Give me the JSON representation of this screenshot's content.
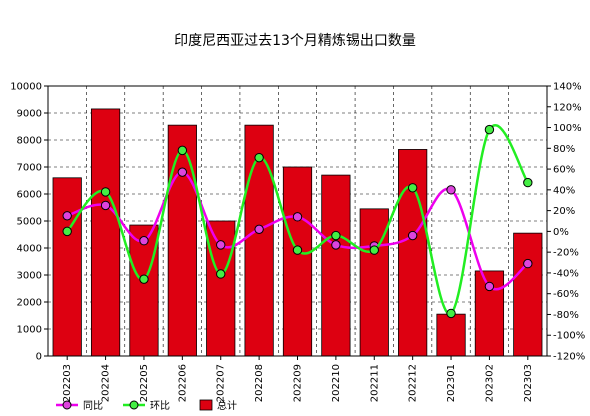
{
  "chart_data": {
    "type": "bar",
    "title": "印度尼西亚过去13个月精炼锡出口数量",
    "categories": [
      "202203",
      "202204",
      "202205",
      "202206",
      "202207",
      "202208",
      "202209",
      "202210",
      "202211",
      "202212",
      "202301",
      "202302",
      "202303"
    ],
    "y_left": {
      "min": 0,
      "max": 10000,
      "step": 1000,
      "ticks": [
        "0",
        "1000",
        "2000",
        "3000",
        "4000",
        "5000",
        "6000",
        "7000",
        "8000",
        "9000",
        "10000"
      ]
    },
    "y_right": {
      "min": -120,
      "max": 140,
      "step": 20,
      "ticks": [
        "-120%",
        "-100%",
        "-80%",
        "-60%",
        "-40%",
        "-20%",
        "0%",
        "20%",
        "40%",
        "60%",
        "80%",
        "100%",
        "120%",
        "140%"
      ]
    },
    "grid": true,
    "legend_position": "bottom-left",
    "series": [
      {
        "name": "总计",
        "type": "bar",
        "axis": "left",
        "color": "#dd0011",
        "values": [
          6600,
          9150,
          4850,
          8550,
          5000,
          8550,
          7000,
          6700,
          5450,
          7650,
          1550,
          3150,
          4550
        ]
      },
      {
        "name": "同比",
        "type": "line",
        "axis": "right",
        "color": "#ee00ee",
        "marker": "#dd44dd",
        "values": [
          15,
          25,
          -9,
          57,
          -13,
          2,
          14,
          -13,
          -14,
          -4,
          40,
          -53,
          -31
        ]
      },
      {
        "name": "环比",
        "type": "line",
        "axis": "right",
        "color": "#22ee22",
        "marker": "#44ee44",
        "values": [
          0,
          38,
          -46,
          78,
          -41,
          71,
          -18,
          -4,
          -18,
          42,
          -79,
          98,
          47
        ]
      }
    ],
    "legend": [
      "同比",
      "环比",
      "总计"
    ]
  }
}
